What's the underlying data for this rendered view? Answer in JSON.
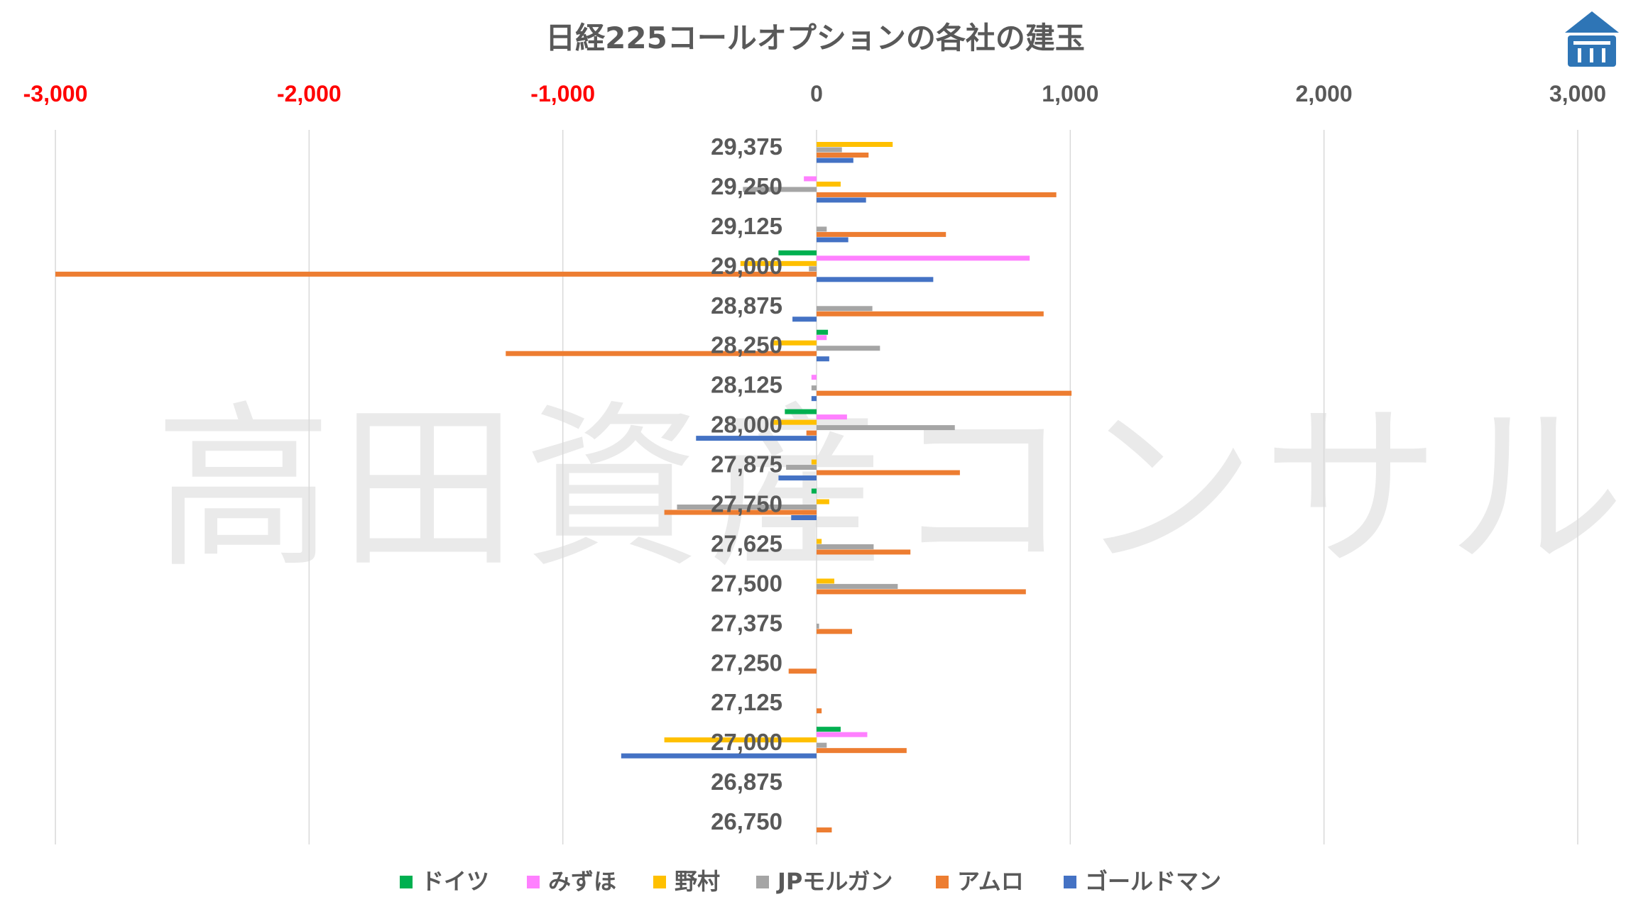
{
  "chart_data": {
    "type": "bar",
    "orientation": "horizontal",
    "title": "日経225コールオプションの各社の建玉",
    "xlim": [
      -3000,
      3000
    ],
    "x_ticks": [
      {
        "value": -3000,
        "label": "-3,000"
      },
      {
        "value": -2000,
        "label": "-2,000"
      },
      {
        "value": -1000,
        "label": "-1,000"
      },
      {
        "value": 0,
        "label": "0"
      },
      {
        "value": 1000,
        "label": "1,000"
      },
      {
        "value": 2000,
        "label": "2,000"
      },
      {
        "value": 3000,
        "label": "3,000"
      }
    ],
    "x_axis_position": "top",
    "negative_tick_color": "#ff0000",
    "positive_tick_color": "#595959",
    "grid": "vertical",
    "legend_position": "bottom",
    "categories": [
      "29,375",
      "29,250",
      "29,125",
      "29,000",
      "28,875",
      "28,250",
      "28,125",
      "28,000",
      "27,875",
      "27,750",
      "27,625",
      "27,500",
      "27,375",
      "27,250",
      "27,125",
      "27,000",
      "26,875",
      "26,750"
    ],
    "series": [
      {
        "name": "ドイツ",
        "color": "#00b050",
        "values": [
          0,
          0,
          0,
          -150,
          0,
          45,
          0,
          -125,
          0,
          -20,
          0,
          0,
          0,
          0,
          0,
          95,
          0,
          0
        ]
      },
      {
        "name": "みずほ",
        "color": "#ff80ff",
        "values": [
          0,
          -50,
          0,
          840,
          0,
          40,
          -20,
          120,
          0,
          0,
          0,
          0,
          0,
          0,
          0,
          200,
          0,
          0
        ]
      },
      {
        "name": "野村",
        "color": "#ffc000",
        "values": [
          300,
          95,
          0,
          -300,
          0,
          -180,
          0,
          -170,
          -20,
          50,
          20,
          70,
          0,
          0,
          0,
          -600,
          0,
          0
        ]
      },
      {
        "name": "JPモルガン",
        "color": "#a5a5a5",
        "values": [
          100,
          -290,
          40,
          -30,
          220,
          250,
          -20,
          545,
          -120,
          -550,
          225,
          320,
          10,
          0,
          0,
          40,
          0,
          0
        ]
      },
      {
        "name": "アムロ",
        "color": "#ed7d31",
        "values": [
          205,
          945,
          510,
          -3000,
          895,
          -1225,
          1005,
          -40,
          565,
          -600,
          370,
          825,
          140,
          -110,
          20,
          355,
          0,
          60
        ]
      },
      {
        "name": "ゴールドマン",
        "color": "#4472c4",
        "values": [
          145,
          195,
          125,
          460,
          -95,
          50,
          -20,
          -475,
          -150,
          -100,
          0,
          0,
          0,
          0,
          0,
          -770,
          0,
          0
        ]
      }
    ]
  },
  "watermark": "高田資産コンサル",
  "logo": {
    "icon": "house-bank-logo-icon",
    "color": "#2e75b6"
  }
}
